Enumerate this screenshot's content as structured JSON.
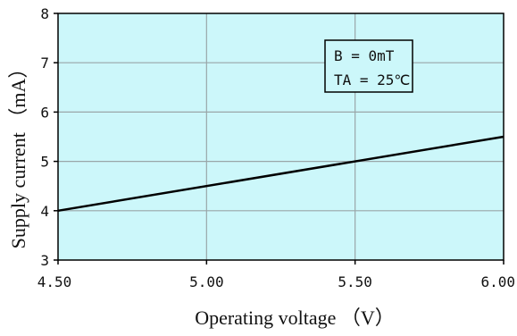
{
  "chart_data": {
    "type": "line",
    "title": "",
    "xlabel": "Operating voltage （V）",
    "ylabel": "Supply current （mA）",
    "xlim": [
      4.5,
      6.0
    ],
    "ylim": [
      3,
      8
    ],
    "x_ticks": [
      4.5,
      5.0,
      5.5,
      6.0
    ],
    "x_tick_labels": [
      "4.50",
      "5.00",
      "5.50",
      "6.00"
    ],
    "y_ticks": [
      3,
      4,
      5,
      6,
      7,
      8
    ],
    "y_tick_labels": [
      "3",
      "4",
      "5",
      "6",
      "7",
      "8"
    ],
    "grid": true,
    "background_color": "#ccf7fa",
    "grid_color": "#9aa6a8",
    "line_color": "#000000",
    "series": [
      {
        "x": [
          4.5,
          6.0
        ],
        "y": [
          4.0,
          5.5
        ]
      }
    ],
    "annotations": {
      "condition_lines": [
        "B = 0mT",
        "TA = 25℃"
      ]
    }
  }
}
